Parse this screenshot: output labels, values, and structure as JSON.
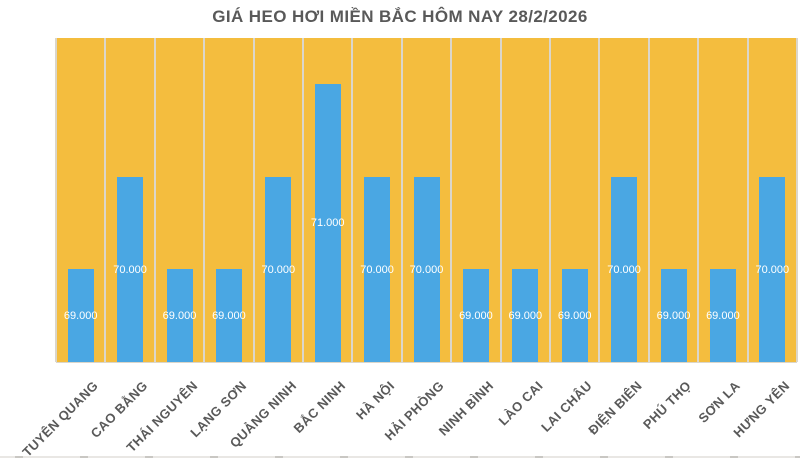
{
  "chart_data": {
    "type": "bar",
    "title": "GIÁ HEO HƠI MIỀN BẮC HÔM NAY 28/2/2026",
    "categories": [
      "TUYÊN QUANG",
      "CAO BẰNG",
      "THÁI NGUYÊN",
      "LẠNG SƠN",
      "QUẢNG NINH",
      "BẮC NINH",
      "HÀ NỘI",
      "HẢI PHÒNG",
      "NINH BÌNH",
      "LÀO CAI",
      "LAI CHÂU",
      "ĐIỆN BIÊN",
      "PHÚ THỌ",
      "SƠN LA",
      "HƯNG YÊN"
    ],
    "values": [
      69000,
      70000,
      69000,
      69000,
      70000,
      71000,
      70000,
      70000,
      69000,
      69000,
      69000,
      70000,
      69000,
      69000,
      70000
    ],
    "value_labels": [
      "69.000",
      "70.000",
      "69.000",
      "69.000",
      "70.000",
      "71.000",
      "70.000",
      "70.000",
      "69.000",
      "69.000",
      "69.000",
      "70.000",
      "69.000",
      "69.000",
      "70.000"
    ],
    "xlabel": "",
    "ylabel": "",
    "ylim": [
      68000,
      71500
    ],
    "grid": "vertical-category-separators",
    "legend_position": "none",
    "colors": {
      "bar": "#4AA7E3",
      "plot_bg": "#F4BD3E",
      "gridline": "#DBD6CA",
      "value_label": "#FFFFFF",
      "axis_label": "#595959",
      "title": "#595959"
    }
  }
}
